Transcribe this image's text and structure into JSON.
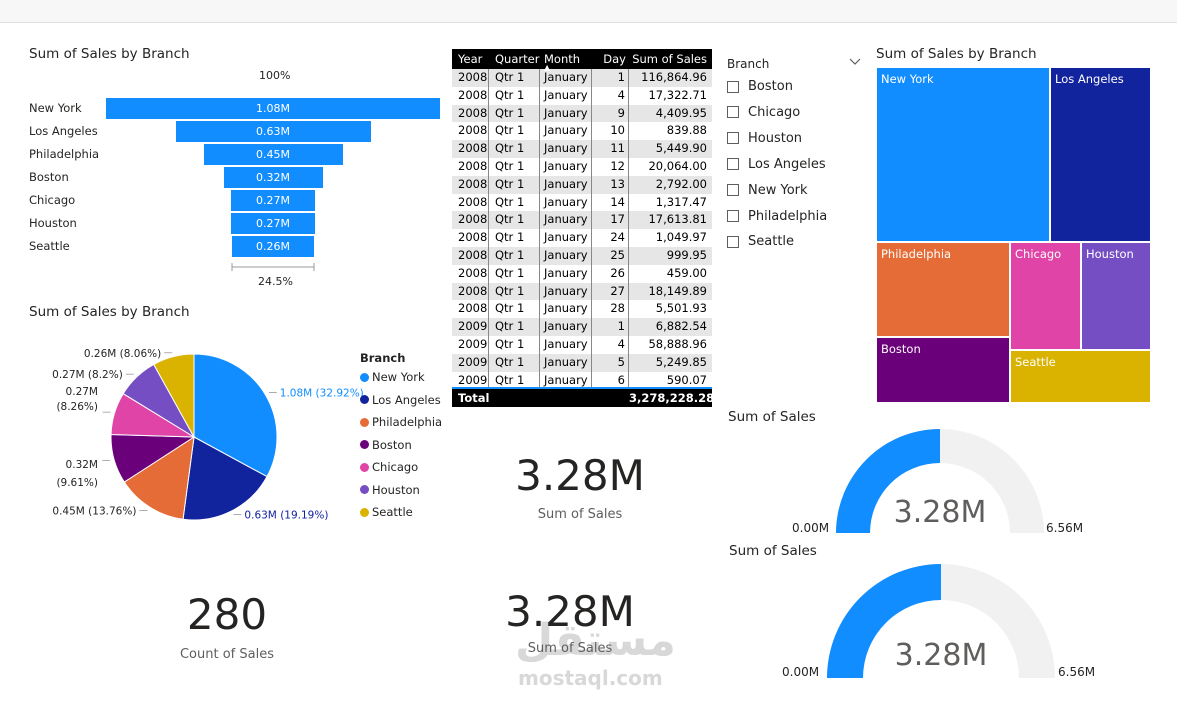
{
  "funnel": {
    "title": "Sum of Sales by Branch",
    "top_pct": "100%",
    "bottom_pct": "24.5%",
    "color": "#118DFF",
    "rows": [
      {
        "label": "New York",
        "value": "1.08M",
        "ratio": 1.0
      },
      {
        "label": "Los Angeles",
        "value": "0.63M",
        "ratio": 0.583
      },
      {
        "label": "Philadelphia",
        "value": "0.45M",
        "ratio": 0.417
      },
      {
        "label": "Boston",
        "value": "0.32M",
        "ratio": 0.296
      },
      {
        "label": "Chicago",
        "value": "0.27M",
        "ratio": 0.25
      },
      {
        "label": "Houston",
        "value": "0.27M",
        "ratio": 0.25
      },
      {
        "label": "Seattle",
        "value": "0.26M",
        "ratio": 0.245
      }
    ]
  },
  "table": {
    "headers": [
      "Year",
      "Quarter",
      "Month",
      "Day",
      "Sum of Sales"
    ],
    "rows": [
      [
        "2008",
        "Qtr 1",
        "January",
        "1",
        "116,864.96"
      ],
      [
        "2008",
        "Qtr 1",
        "January",
        "4",
        "17,322.71"
      ],
      [
        "2008",
        "Qtr 1",
        "January",
        "9",
        "4,409.95"
      ],
      [
        "2008",
        "Qtr 1",
        "January",
        "10",
        "839.88"
      ],
      [
        "2008",
        "Qtr 1",
        "January",
        "11",
        "5,449.90"
      ],
      [
        "2008",
        "Qtr 1",
        "January",
        "12",
        "20,064.00"
      ],
      [
        "2008",
        "Qtr 1",
        "January",
        "13",
        "2,792.00"
      ],
      [
        "2008",
        "Qtr 1",
        "January",
        "14",
        "1,317.47"
      ],
      [
        "2008",
        "Qtr 1",
        "January",
        "17",
        "17,613.81"
      ],
      [
        "2008",
        "Qtr 1",
        "January",
        "24",
        "1,049.97"
      ],
      [
        "2008",
        "Qtr 1",
        "January",
        "25",
        "999.95"
      ],
      [
        "2008",
        "Qtr 1",
        "January",
        "26",
        "459.00"
      ],
      [
        "2008",
        "Qtr 1",
        "January",
        "27",
        "18,149.89"
      ],
      [
        "2008",
        "Qtr 1",
        "January",
        "28",
        "5,501.93"
      ],
      [
        "2009",
        "Qtr 1",
        "January",
        "1",
        "6,882.54"
      ],
      [
        "2009",
        "Qtr 1",
        "January",
        "4",
        "58,888.96"
      ],
      [
        "2009",
        "Qtr 1",
        "January",
        "5",
        "5,249.85"
      ],
      [
        "2009",
        "Qtr 1",
        "January",
        "6",
        "590.07"
      ]
    ],
    "total_label": "Total",
    "total_value": "3,278,228.28"
  },
  "slicer": {
    "title": "Branch",
    "items": [
      "Boston",
      "Chicago",
      "Houston",
      "Los Angeles",
      "New York",
      "Philadelphia",
      "Seattle"
    ]
  },
  "treemap": {
    "title": "Sum of Sales by Branch",
    "tiles": [
      {
        "label": "New York",
        "color": "#118DFF"
      },
      {
        "label": "Los Angeles",
        "color": "#12239E"
      },
      {
        "label": "Philadelphia",
        "color": "#E66C37"
      },
      {
        "label": "Chicago",
        "color": "#E044A7"
      },
      {
        "label": "Houston",
        "color": "#744EC2"
      },
      {
        "label": "Boston",
        "color": "#6B007B"
      },
      {
        "label": "Seattle",
        "color": "#D9B300"
      }
    ]
  },
  "pie": {
    "title": "Sum of Sales by Branch",
    "legend_title": "Branch",
    "slices": [
      {
        "name": "New York",
        "label": "1.08M (32.92%)",
        "pct": 32.92,
        "color": "#118DFF"
      },
      {
        "name": "Los Angeles",
        "label": "0.63M (19.19%)",
        "pct": 19.19,
        "color": "#12239E"
      },
      {
        "name": "Philadelphia",
        "label": "0.45M (13.76%)",
        "pct": 13.76,
        "color": "#E66C37"
      },
      {
        "name": "Boston",
        "label": "0.32M (9.61%)",
        "pct": 9.61,
        "color": "#6B007B"
      },
      {
        "name": "Chicago",
        "label": "0.27M (8.26%)",
        "pct": 8.26,
        "color": "#E044A7"
      },
      {
        "name": "Houston",
        "label": "0.27M (8.2%)",
        "pct": 8.2,
        "color": "#744EC2"
      },
      {
        "name": "Seattle",
        "label": "0.26M (8.06%)",
        "pct": 8.06,
        "color": "#D9B300"
      }
    ]
  },
  "card_count": {
    "value": "280",
    "label": "Count of Sales"
  },
  "card_sales1": {
    "value": "3.28M",
    "label": "Sum of Sales"
  },
  "card_sales2": {
    "value": "3.28M",
    "label": "Sum of Sales"
  },
  "gauge1": {
    "title": "Sum of Sales",
    "value": "3.28M",
    "min": "0.00M",
    "max": "6.56M",
    "fraction": 0.5
  },
  "gauge2": {
    "title": "Sum of Sales",
    "value": "3.28M",
    "min": "0.00M",
    "max": "6.56M",
    "fraction": 0.5
  },
  "watermark": {
    "arabic": "مستقل",
    "latin": "mostaql.com"
  },
  "colors": {
    "accent": "#118DFF",
    "track": "#F1F1F1"
  }
}
